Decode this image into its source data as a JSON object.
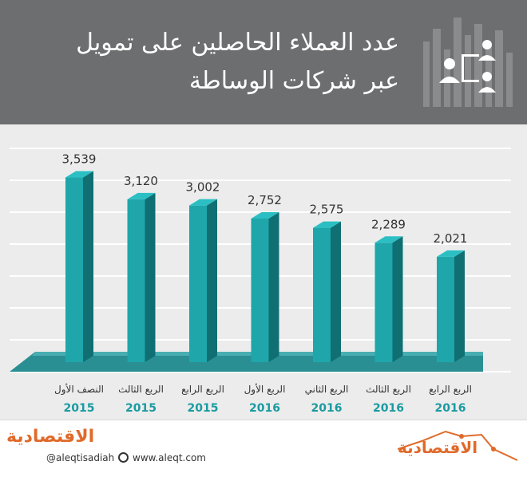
{
  "header": {
    "title_line1": "عدد العملاء الحاصلين على تمويل",
    "title_line2": "عبر شركات الوساطة",
    "icon": "people-network-icon"
  },
  "chart_data": {
    "type": "bar",
    "title": "عدد العملاء الحاصلين على تمويل عبر شركات الوساطة",
    "categories": [
      {
        "period": "النصف الأول",
        "year": "2015"
      },
      {
        "period": "الربع الثالث",
        "year": "2015"
      },
      {
        "period": "الربع الرابع",
        "year": "2015"
      },
      {
        "period": "الربع الأول",
        "year": "2016"
      },
      {
        "period": "الربع الثاني",
        "year": "2016"
      },
      {
        "period": "الربع الثالث",
        "year": "2016"
      },
      {
        "period": "الربع الرابع",
        "year": "2016"
      }
    ],
    "values": [
      3539,
      3120,
      3002,
      2752,
      2575,
      2289,
      2021
    ],
    "value_labels": [
      "3,539",
      "3,120",
      "3,002",
      "2,752",
      "2,575",
      "2,289",
      "2,021"
    ],
    "ylim": [
      0,
      3700
    ],
    "grid": true,
    "colors": {
      "bar_front": "#1ea6aa",
      "bar_side": "#0f6f72",
      "bar_top": "#2bbfc3",
      "floor": "#2a8f93",
      "grid": "#ffffff",
      "year": "#1a9aa0"
    }
  },
  "footer": {
    "logo_left": "الاقتصادية",
    "handle": "@aleqtisadiah",
    "website": "www.aleqt.com",
    "logo_right": "الاقتصادية"
  }
}
